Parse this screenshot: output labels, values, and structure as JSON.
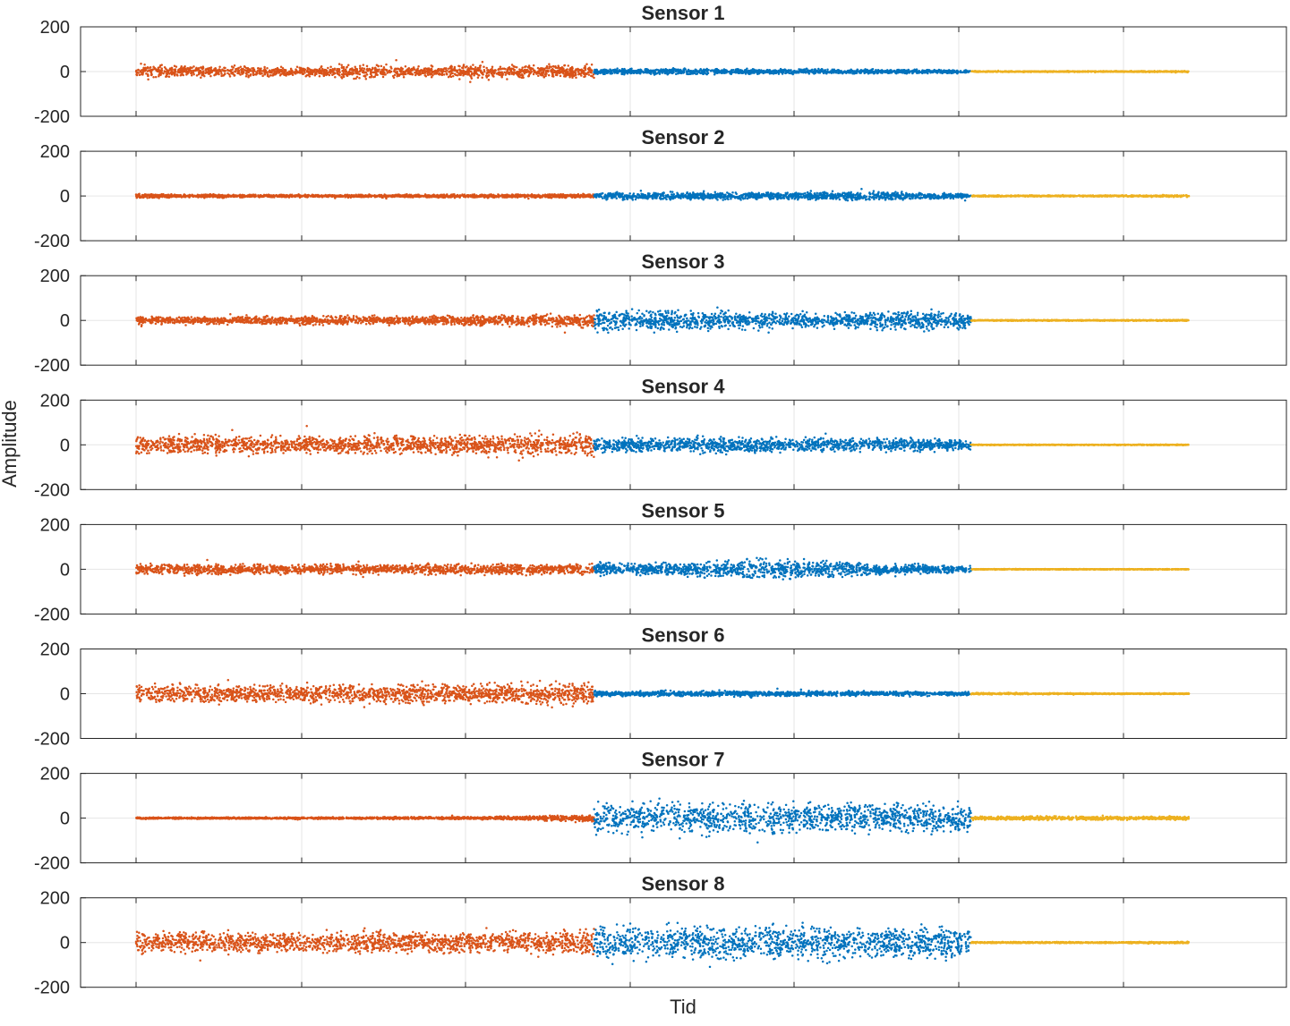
{
  "figure": {
    "xlabel": "Tid",
    "ylabel": "Amplitude"
  },
  "colors": {
    "series1": "#D95319",
    "series2": "#0072BD",
    "series3": "#EDB120",
    "grid": "#e6e6e6",
    "axes": "#262626"
  },
  "chart_data": [
    {
      "type": "scatter",
      "title": "Sensor 1",
      "ylim": [
        -200,
        200
      ],
      "yticks": [
        200,
        0,
        -200
      ],
      "grid": true,
      "series": [
        {
          "color": "#D95319",
          "x": [
            0,
            0.435
          ],
          "amplitude_envelope": [
            38,
            32,
            28,
            26,
            46,
            30,
            45,
            36,
            40
          ]
        },
        {
          "color": "#0072BD",
          "x": [
            0.435,
            0.793
          ],
          "amplitude_envelope": [
            18,
            17,
            15,
            14,
            12,
            10
          ]
        },
        {
          "color": "#EDB120",
          "x": [
            0.793,
            1.0
          ],
          "amplitude_envelope": [
            3,
            3,
            3,
            4
          ]
        }
      ]
    },
    {
      "type": "scatter",
      "title": "Sensor 2",
      "ylim": [
        -200,
        200
      ],
      "yticks": [
        200,
        0,
        -200
      ],
      "grid": true,
      "series": [
        {
          "color": "#D95319",
          "x": [
            0,
            0.435
          ],
          "amplitude_envelope": [
            12,
            10,
            8,
            8,
            9,
            10,
            10,
            12
          ]
        },
        {
          "color": "#0072BD",
          "x": [
            0.435,
            0.793
          ],
          "amplitude_envelope": [
            20,
            22,
            20,
            24,
            25,
            12
          ]
        },
        {
          "color": "#EDB120",
          "x": [
            0.793,
            1.0
          ],
          "amplitude_envelope": [
            4,
            4,
            4,
            6
          ]
        }
      ]
    },
    {
      "type": "scatter",
      "title": "Sensor 3",
      "ylim": [
        -200,
        200
      ],
      "yticks": [
        200,
        0,
        -200
      ],
      "grid": true,
      "series": [
        {
          "color": "#D95319",
          "x": [
            0,
            0.435
          ],
          "amplitude_envelope": [
            22,
            22,
            25,
            27,
            25,
            28,
            32,
            38
          ]
        },
        {
          "color": "#0072BD",
          "x": [
            0.435,
            0.793
          ],
          "amplitude_envelope": [
            70,
            55,
            52,
            42,
            60,
            45
          ]
        },
        {
          "color": "#EDB120",
          "x": [
            0.793,
            1.0
          ],
          "amplitude_envelope": [
            3,
            3,
            3,
            3
          ]
        }
      ]
    },
    {
      "type": "scatter",
      "title": "Sensor 4",
      "ylim": [
        -200,
        200
      ],
      "yticks": [
        200,
        0,
        -200
      ],
      "grid": true,
      "series": [
        {
          "color": "#D95319",
          "x": [
            0,
            0.435
          ],
          "amplitude_envelope": [
            55,
            55,
            58,
            55,
            55,
            60,
            62,
            70
          ]
        },
        {
          "color": "#0072BD",
          "x": [
            0.435,
            0.793
          ],
          "amplitude_envelope": [
            45,
            45,
            48,
            42,
            42,
            30
          ]
        },
        {
          "color": "#EDB120",
          "x": [
            0.793,
            1.0
          ],
          "amplitude_envelope": [
            2,
            2,
            2,
            2
          ]
        }
      ]
    },
    {
      "type": "scatter",
      "title": "Sensor 5",
      "ylim": [
        -200,
        200
      ],
      "yticks": [
        200,
        0,
        -200
      ],
      "grid": true,
      "series": [
        {
          "color": "#D95319",
          "x": [
            0,
            0.435
          ],
          "amplitude_envelope": [
            30,
            30,
            30,
            28,
            28,
            35,
            30,
            38
          ]
        },
        {
          "color": "#0072BD",
          "x": [
            0.435,
            0.793
          ],
          "amplitude_envelope": [
            40,
            35,
            65,
            55,
            30,
            22
          ]
        },
        {
          "color": "#EDB120",
          "x": [
            0.793,
            1.0
          ],
          "amplitude_envelope": [
            2,
            2,
            2,
            2
          ]
        }
      ]
    },
    {
      "type": "scatter",
      "title": "Sensor 6",
      "ylim": [
        -200,
        200
      ],
      "yticks": [
        200,
        0,
        -200
      ],
      "grid": true,
      "series": [
        {
          "color": "#D95319",
          "x": [
            0,
            0.435
          ],
          "amplitude_envelope": [
            60,
            55,
            50,
            52,
            58,
            60,
            65,
            62
          ]
        },
        {
          "color": "#0072BD",
          "x": [
            0.435,
            0.793
          ],
          "amplitude_envelope": [
            18,
            16,
            16,
            14,
            14,
            10
          ]
        },
        {
          "color": "#EDB120",
          "x": [
            0.793,
            1.0
          ],
          "amplitude_envelope": [
            6,
            4,
            3,
            3
          ]
        }
      ]
    },
    {
      "type": "scatter",
      "title": "Sensor 7",
      "ylim": [
        -200,
        200
      ],
      "yticks": [
        200,
        0,
        -200
      ],
      "grid": true,
      "series": [
        {
          "color": "#D95319",
          "x": [
            0,
            0.435
          ],
          "amplitude_envelope": [
            5,
            5,
            5,
            6,
            7,
            8,
            12,
            20
          ]
        },
        {
          "color": "#0072BD",
          "x": [
            0.435,
            0.793
          ],
          "amplitude_envelope": [
            90,
            95,
            95,
            92,
            90,
            85
          ]
        },
        {
          "color": "#EDB120",
          "x": [
            0.793,
            1.0
          ],
          "amplitude_envelope": [
            10,
            12,
            10,
            12
          ]
        }
      ]
    },
    {
      "type": "scatter",
      "title": "Sensor 8",
      "ylim": [
        -200,
        200
      ],
      "yticks": [
        200,
        0,
        -200
      ],
      "grid": true,
      "series": [
        {
          "color": "#D95319",
          "x": [
            0,
            0.435
          ],
          "amplitude_envelope": [
            65,
            62,
            60,
            62,
            65,
            65,
            70,
            75
          ]
        },
        {
          "color": "#0072BD",
          "x": [
            0.435,
            0.793
          ],
          "amplitude_envelope": [
            105,
            105,
            100,
            100,
            95,
            90
          ]
        },
        {
          "color": "#EDB120",
          "x": [
            0.793,
            1.0
          ],
          "amplitude_envelope": [
            4,
            4,
            4,
            6
          ]
        }
      ]
    }
  ]
}
